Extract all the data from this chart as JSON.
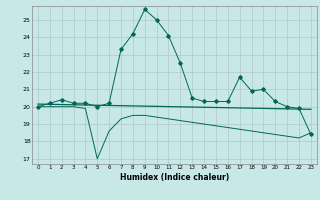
{
  "title": "",
  "xlabel": "Humidex (Indice chaleur)",
  "background_color": "#c8e8e8",
  "grid_color": "#b0c8c8",
  "line_color": "#006655",
  "xlim": [
    -0.5,
    23.5
  ],
  "ylim": [
    16.7,
    25.8
  ],
  "yticks": [
    17,
    18,
    19,
    20,
    21,
    22,
    23,
    24,
    25
  ],
  "xticks": [
    0,
    1,
    2,
    3,
    4,
    5,
    6,
    7,
    8,
    9,
    10,
    11,
    12,
    13,
    14,
    15,
    16,
    17,
    18,
    19,
    20,
    21,
    22,
    23
  ],
  "series1_x": [
    0,
    1,
    2,
    3,
    4,
    5,
    6,
    7,
    8,
    9,
    10,
    11,
    12,
    13,
    14,
    15,
    16,
    17,
    18,
    19,
    20,
    21,
    22,
    23
  ],
  "series1_y": [
    20.0,
    20.2,
    20.4,
    20.2,
    20.2,
    20.0,
    20.2,
    23.3,
    24.2,
    25.6,
    25.0,
    24.1,
    22.5,
    20.5,
    20.3,
    20.3,
    20.3,
    21.7,
    20.9,
    21.0,
    20.3,
    20.0,
    19.9,
    18.4
  ],
  "series2_x": [
    0,
    1,
    2,
    3,
    4,
    5,
    6,
    7,
    8,
    9,
    10,
    11,
    12,
    13,
    14,
    15,
    16,
    17,
    18,
    19,
    20,
    21,
    22,
    23
  ],
  "series2_y": [
    20.0,
    20.0,
    20.0,
    20.0,
    19.9,
    17.0,
    18.6,
    19.3,
    19.5,
    19.5,
    19.4,
    19.3,
    19.2,
    19.1,
    19.0,
    18.9,
    18.8,
    18.7,
    18.6,
    18.5,
    18.4,
    18.3,
    18.2,
    18.5
  ],
  "trend_x": [
    0,
    23
  ],
  "trend_y": [
    20.15,
    19.85
  ]
}
